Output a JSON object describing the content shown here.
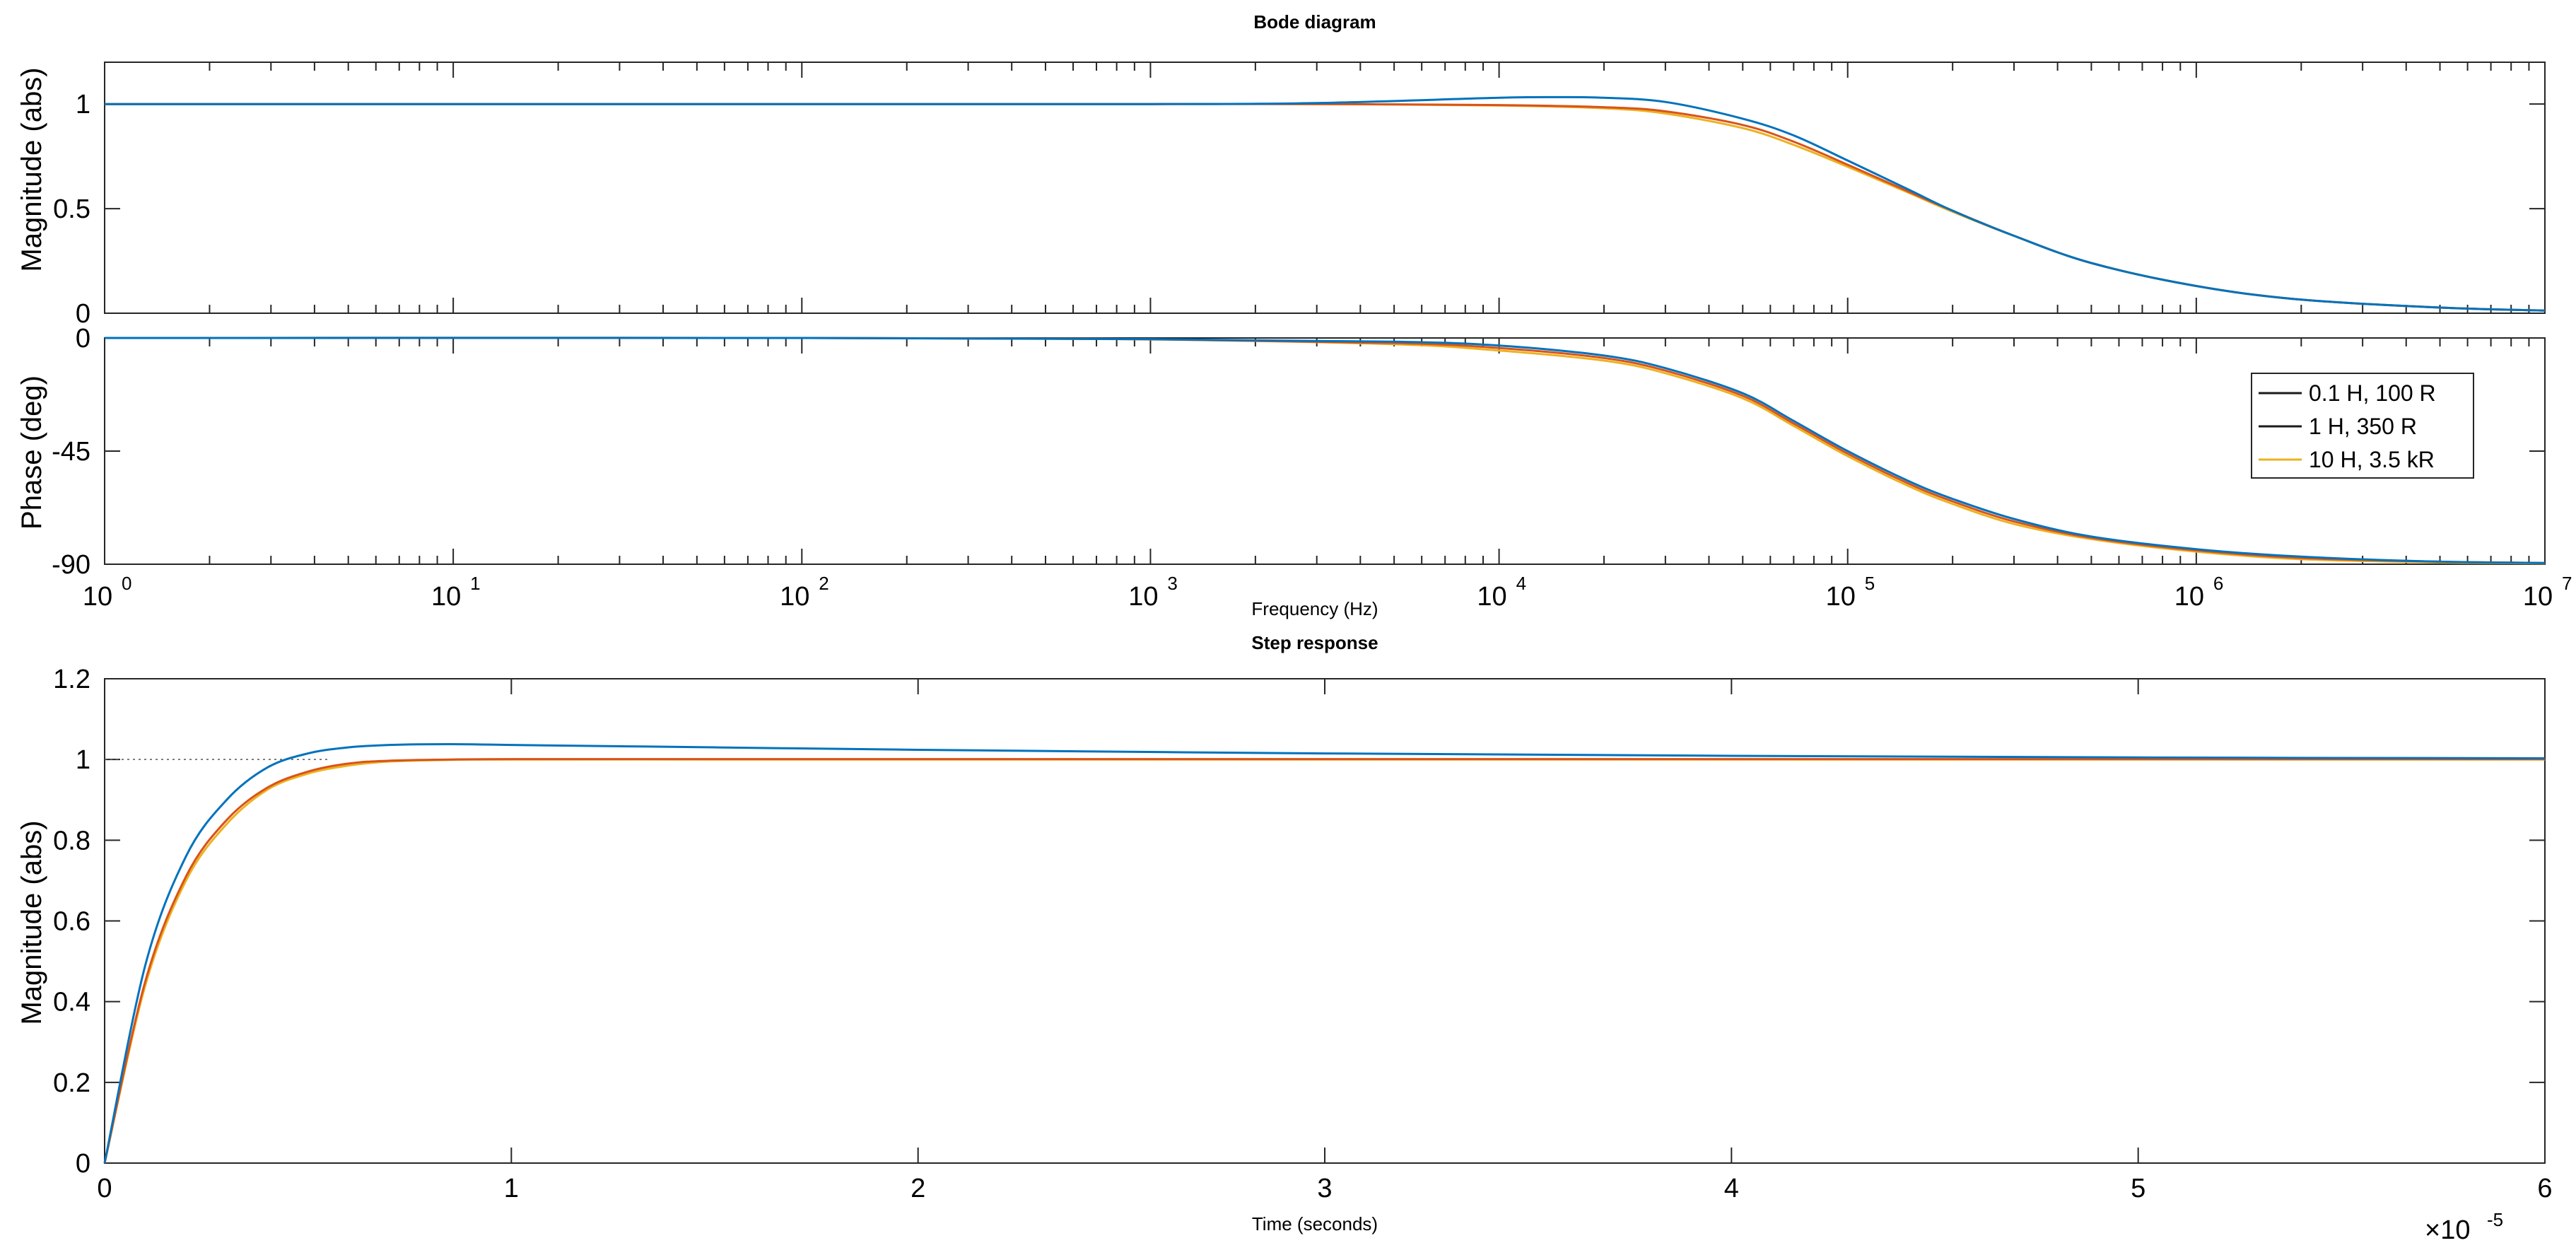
{
  "colors": {
    "series1": "#0072BD",
    "series2": "#D95319",
    "series3": "#EDB120",
    "reference": "#555555"
  },
  "chart_data": [
    {
      "id": "bode-magnitude",
      "type": "line",
      "title": "Bode diagram",
      "xlabel": "",
      "ylabel": "Magnitude (abs)",
      "xscale": "log",
      "xlim": [
        1,
        10000000
      ],
      "ylim": [
        0,
        1.2
      ],
      "yticks": [
        0,
        0.5,
        1
      ],
      "yticklabels": [
        "0",
        "0.5",
        "1"
      ],
      "grid": false,
      "series": [
        {
          "name": "0.1 H, 100 R",
          "x": [
            1,
            10,
            100,
            1000,
            3000,
            10000,
            15000,
            20000,
            30000,
            50000,
            70000,
            100000,
            150000,
            200000,
            300000,
            500000,
            1000000,
            2000000,
            5000000,
            10000000
          ],
          "y": [
            1,
            1,
            1,
            1,
            1.005,
            1.03,
            1.033,
            1.03,
            1.01,
            0.93,
            0.85,
            0.73,
            0.59,
            0.49,
            0.37,
            0.24,
            0.13,
            0.065,
            0.027,
            0.013
          ]
        },
        {
          "name": "1 H, 350 R",
          "x": [
            1,
            10,
            100,
            1000,
            3000,
            10000,
            20000,
            30000,
            50000,
            70000,
            100000,
            150000,
            200000,
            300000,
            500000,
            1000000,
            2000000,
            5000000,
            10000000
          ],
          "y": [
            1,
            1,
            1,
            1,
            1,
            0.995,
            0.985,
            0.965,
            0.9,
            0.82,
            0.71,
            0.58,
            0.49,
            0.37,
            0.24,
            0.13,
            0.065,
            0.027,
            0.013
          ]
        },
        {
          "name": "10 H, 3.5 kR",
          "x": [
            1,
            10,
            100,
            1000,
            3000,
            10000,
            20000,
            30000,
            50000,
            70000,
            100000,
            150000,
            200000,
            300000,
            500000,
            1000000,
            2000000,
            5000000,
            10000000
          ],
          "y": [
            1,
            1,
            1,
            1,
            1,
            0.993,
            0.98,
            0.955,
            0.885,
            0.805,
            0.7,
            0.575,
            0.485,
            0.37,
            0.24,
            0.13,
            0.065,
            0.027,
            0.013
          ]
        }
      ]
    },
    {
      "id": "bode-phase",
      "type": "line",
      "title": "",
      "xlabel": "Frequency  (Hz)",
      "ylabel": "Phase (deg)",
      "xscale": "log",
      "xlim": [
        1,
        10000000
      ],
      "xtick_bases": [
        "10",
        "10",
        "10",
        "10",
        "10",
        "10",
        "10",
        "10"
      ],
      "xtick_exponents": [
        "0",
        "1",
        "2",
        "3",
        "4",
        "5",
        "6",
        "7"
      ],
      "ylim": [
        -90,
        0
      ],
      "yticks": [
        0,
        -45,
        -90
      ],
      "yticklabels": [
        "0",
        "-45",
        "-90"
      ],
      "grid": false,
      "legend": {
        "placement": "right",
        "entries": [
          "0.1 H, 100 R",
          "1 H, 350 R",
          "10 H, 3.5 kR"
        ]
      },
      "series": [
        {
          "name": "0.1 H, 100 R",
          "x": [
            1,
            100,
            1000,
            5000,
            10000,
            20000,
            30000,
            50000,
            70000,
            100000,
            150000,
            200000,
            300000,
            500000,
            1000000,
            2000000,
            5000000,
            10000000
          ],
          "y": [
            0,
            0,
            -0.5,
            -1.5,
            -3,
            -7,
            -12,
            -22,
            -33,
            -45,
            -57,
            -64,
            -72,
            -79,
            -84,
            -87,
            -89,
            -89.5
          ]
        },
        {
          "name": "1 H, 350 R",
          "x": [
            1,
            100,
            1000,
            5000,
            10000,
            20000,
            30000,
            50000,
            70000,
            100000,
            150000,
            200000,
            300000,
            500000,
            1000000,
            2000000,
            5000000,
            10000000
          ],
          "y": [
            0,
            0,
            -0.5,
            -2,
            -4,
            -8,
            -13,
            -23,
            -34,
            -46,
            -58,
            -65,
            -73,
            -79.5,
            -84.5,
            -87.5,
            -89,
            -89.5
          ]
        },
        {
          "name": "10 H, 3.5 kR",
          "x": [
            1,
            100,
            1000,
            5000,
            10000,
            20000,
            30000,
            50000,
            70000,
            100000,
            150000,
            200000,
            300000,
            500000,
            1000000,
            2000000,
            5000000,
            10000000
          ],
          "y": [
            0,
            0,
            -0.6,
            -2.5,
            -5,
            -9,
            -14,
            -24,
            -35,
            -47,
            -59,
            -66,
            -74,
            -80,
            -85,
            -88,
            -89.3,
            -89.7
          ]
        }
      ]
    },
    {
      "id": "step-response",
      "type": "line",
      "title": "Step response",
      "xlabel": "Time (seconds)",
      "ylabel": "Magnitude (abs)",
      "xscale": "linear",
      "xlim": [
        0,
        6
      ],
      "x_multiplier": "×10",
      "x_multiplier_exponent": "-5",
      "xticks": [
        0,
        1,
        2,
        3,
        4,
        5,
        6
      ],
      "xticklabels": [
        "0",
        "1",
        "2",
        "3",
        "4",
        "5",
        "6"
      ],
      "ylim": [
        0,
        1.2
      ],
      "yticks": [
        0,
        0.2,
        0.4,
        0.6,
        0.8,
        1,
        1.2
      ],
      "yticklabels": [
        "0",
        "0.2",
        "0.4",
        "0.6",
        "0.8",
        "1",
        "1.2"
      ],
      "grid": false,
      "reference_line": {
        "y": 1,
        "x_end": 0.55
      },
      "series": [
        {
          "name": "0.1 H, 100 R",
          "x": [
            0,
            0.1,
            0.2,
            0.3,
            0.4,
            0.5,
            0.6,
            0.7,
            0.85,
            1,
            1.5,
            2,
            3,
            4,
            5,
            6
          ],
          "y": [
            0,
            0.49,
            0.76,
            0.9,
            0.98,
            1.015,
            1.03,
            1.036,
            1.038,
            1.036,
            1.03,
            1.024,
            1.015,
            1.009,
            1.005,
            1.003
          ]
        },
        {
          "name": "1 H, 350 R",
          "x": [
            0,
            0.1,
            0.2,
            0.3,
            0.4,
            0.5,
            0.6,
            0.7,
            0.85,
            1,
            1.5,
            2,
            3,
            4,
            5,
            6
          ],
          "y": [
            0,
            0.45,
            0.71,
            0.85,
            0.93,
            0.97,
            0.99,
            0.997,
            1,
            1.001,
            1.001,
            1.001,
            1.001,
            1.001,
            1.001,
            1.001
          ]
        },
        {
          "name": "10 H, 3.5 kR",
          "x": [
            0,
            0.1,
            0.2,
            0.3,
            0.4,
            0.5,
            0.6,
            0.7,
            0.85,
            1,
            1.5,
            2,
            3,
            4,
            5,
            6
          ],
          "y": [
            0,
            0.44,
            0.7,
            0.84,
            0.925,
            0.965,
            0.985,
            0.995,
            0.999,
            1,
            1,
            1,
            1,
            1,
            1,
            1
          ]
        }
      ]
    }
  ]
}
